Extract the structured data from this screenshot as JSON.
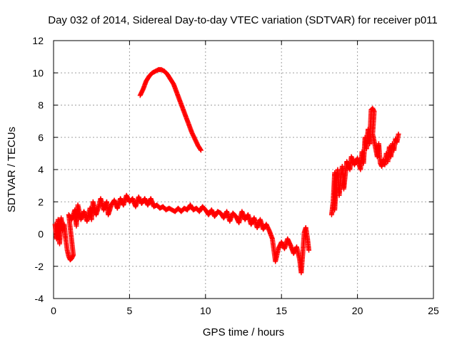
{
  "chart_data": {
    "type": "scatter",
    "title": "Day 032 of 2014, Sidereal Day-to-day VTEC variation (SDTVAR) for receiver p011",
    "xlabel": "GPS time / hours",
    "ylabel": "SDTVAR / TECUs",
    "xlim": [
      0,
      25
    ],
    "ylim": [
      -4,
      12
    ],
    "xticks": [
      0,
      5,
      10,
      15,
      20,
      25
    ],
    "yticks": [
      -4,
      -2,
      0,
      2,
      4,
      6,
      8,
      10,
      12
    ],
    "grid": true,
    "marker": "plus",
    "series": [
      {
        "name": "main-low-arc",
        "color": "#ff0000",
        "points": [
          [
            0.1,
            0.6
          ],
          [
            0.2,
            -0.3
          ],
          [
            0.3,
            0.9
          ],
          [
            0.4,
            -0.6
          ],
          [
            0.5,
            1.0
          ],
          [
            0.6,
            0.2
          ],
          [
            0.7,
            0.6
          ],
          [
            0.8,
            -0.3
          ],
          [
            0.9,
            -1.0
          ],
          [
            1.0,
            -1.4
          ],
          [
            1.1,
            -1.6
          ],
          [
            1.2,
            -1.5
          ],
          [
            1.3,
            -1.3
          ],
          [
            1.0,
            1.2
          ],
          [
            1.2,
            0.9
          ],
          [
            1.4,
            1.5
          ],
          [
            1.5,
            0.5
          ],
          [
            1.6,
            1.8
          ],
          [
            1.8,
            0.9
          ],
          [
            2.0,
            1.4
          ],
          [
            2.2,
            0.8
          ],
          [
            2.4,
            1.6
          ],
          [
            2.5,
            0.9
          ],
          [
            2.6,
            2.0
          ],
          [
            2.8,
            1.2
          ],
          [
            3.0,
            1.8
          ],
          [
            3.1,
            2.2
          ],
          [
            3.3,
            1.5
          ],
          [
            3.5,
            2.0
          ],
          [
            3.6,
            1.2
          ],
          [
            3.8,
            1.8
          ],
          [
            4.0,
            2.1
          ],
          [
            4.2,
            1.6
          ],
          [
            4.4,
            2.2
          ],
          [
            4.6,
            1.8
          ],
          [
            4.8,
            2.4
          ],
          [
            5.0,
            2.0
          ],
          [
            5.2,
            2.2
          ],
          [
            5.4,
            1.7
          ],
          [
            5.6,
            2.3
          ],
          [
            5.8,
            1.9
          ],
          [
            6.0,
            2.2
          ],
          [
            6.2,
            1.8
          ],
          [
            6.4,
            2.2
          ],
          [
            6.6,
            1.7
          ],
          [
            6.8,
            1.8
          ],
          [
            7.0,
            1.6
          ],
          [
            7.2,
            1.7
          ],
          [
            7.4,
            1.5
          ],
          [
            7.6,
            1.6
          ],
          [
            7.8,
            1.5
          ],
          [
            8.0,
            1.4
          ],
          [
            8.2,
            1.6
          ],
          [
            8.4,
            1.4
          ],
          [
            8.6,
            1.6
          ],
          [
            8.8,
            1.5
          ],
          [
            9.0,
            1.8
          ],
          [
            9.2,
            1.5
          ],
          [
            9.4,
            1.6
          ],
          [
            9.6,
            1.4
          ],
          [
            9.8,
            1.7
          ],
          [
            10.0,
            1.5
          ],
          [
            10.2,
            1.2
          ],
          [
            10.4,
            1.5
          ],
          [
            10.6,
            1.1
          ],
          [
            10.8,
            1.4
          ],
          [
            11.0,
            1.3
          ],
          [
            11.2,
            1.0
          ],
          [
            11.4,
            1.4
          ],
          [
            11.6,
            0.8
          ],
          [
            11.8,
            1.3
          ],
          [
            12.0,
            1.1
          ],
          [
            12.2,
            0.7
          ],
          [
            12.4,
            1.4
          ],
          [
            12.6,
            0.9
          ],
          [
            12.8,
            1.2
          ],
          [
            13.0,
            0.6
          ],
          [
            13.2,
            1.0
          ],
          [
            13.4,
            0.4
          ],
          [
            13.6,
            0.9
          ],
          [
            13.8,
            0.3
          ],
          [
            14.0,
            0.6
          ],
          [
            14.2,
            0.2
          ],
          [
            14.4,
            -0.3
          ],
          [
            14.6,
            -1.7
          ],
          [
            14.8,
            -0.9
          ],
          [
            15.0,
            -0.5
          ],
          [
            15.2,
            -0.9
          ],
          [
            15.4,
            -0.3
          ],
          [
            15.6,
            -0.7
          ],
          [
            15.8,
            -1.2
          ],
          [
            16.0,
            -0.8
          ],
          [
            16.2,
            -1.6
          ],
          [
            16.3,
            -2.4
          ],
          [
            16.4,
            -1.2
          ],
          [
            16.5,
            0.1
          ],
          [
            16.6,
            0.4
          ],
          [
            16.7,
            -0.2
          ],
          [
            16.8,
            -1.0
          ]
        ]
      },
      {
        "name": "high-arc",
        "color": "#ff0000",
        "points": [
          [
            5.7,
            8.6
          ],
          [
            5.9,
            9.0
          ],
          [
            6.1,
            9.5
          ],
          [
            6.3,
            9.8
          ],
          [
            6.5,
            10.0
          ],
          [
            6.7,
            10.1
          ],
          [
            6.9,
            10.2
          ],
          [
            7.1,
            10.2
          ],
          [
            7.3,
            10.1
          ],
          [
            7.5,
            9.9
          ],
          [
            7.7,
            9.6
          ],
          [
            7.9,
            9.3
          ],
          [
            8.1,
            8.8
          ],
          [
            8.3,
            8.3
          ],
          [
            8.5,
            7.8
          ],
          [
            8.7,
            7.3
          ],
          [
            8.9,
            6.8
          ],
          [
            9.1,
            6.3
          ],
          [
            9.3,
            5.9
          ],
          [
            9.5,
            5.5
          ],
          [
            9.7,
            5.2
          ]
        ]
      },
      {
        "name": "late-segment",
        "color": "#ff0000",
        "points": [
          [
            18.3,
            1.2
          ],
          [
            18.4,
            2.0
          ],
          [
            18.5,
            3.8
          ],
          [
            18.5,
            1.5
          ],
          [
            18.6,
            3.0
          ],
          [
            18.7,
            4.0
          ],
          [
            18.8,
            2.4
          ],
          [
            18.9,
            3.5
          ],
          [
            19.0,
            4.2
          ],
          [
            19.1,
            2.8
          ],
          [
            19.2,
            3.7
          ],
          [
            19.3,
            4.5
          ],
          [
            19.5,
            4.0
          ],
          [
            19.6,
            4.8
          ],
          [
            19.8,
            4.3
          ],
          [
            20.0,
            4.7
          ],
          [
            20.2,
            4.0
          ],
          [
            20.3,
            5.1
          ],
          [
            20.4,
            4.4
          ],
          [
            20.5,
            6.0
          ],
          [
            20.6,
            5.3
          ],
          [
            20.7,
            6.5
          ],
          [
            20.8,
            5.6
          ],
          [
            20.9,
            7.7
          ],
          [
            21.0,
            7.8
          ],
          [
            21.1,
            7.6
          ],
          [
            21.0,
            6.2
          ],
          [
            21.2,
            5.3
          ],
          [
            21.3,
            4.8
          ],
          [
            21.4,
            5.6
          ],
          [
            21.5,
            4.4
          ],
          [
            21.6,
            4.2
          ],
          [
            21.7,
            4.6
          ],
          [
            21.8,
            4.3
          ],
          [
            21.9,
            5.0
          ],
          [
            22.0,
            4.5
          ],
          [
            22.1,
            5.4
          ],
          [
            22.2,
            4.8
          ],
          [
            22.3,
            5.6
          ],
          [
            22.4,
            5.2
          ],
          [
            22.5,
            5.9
          ],
          [
            22.6,
            5.7
          ],
          [
            22.7,
            6.2
          ]
        ]
      }
    ]
  }
}
